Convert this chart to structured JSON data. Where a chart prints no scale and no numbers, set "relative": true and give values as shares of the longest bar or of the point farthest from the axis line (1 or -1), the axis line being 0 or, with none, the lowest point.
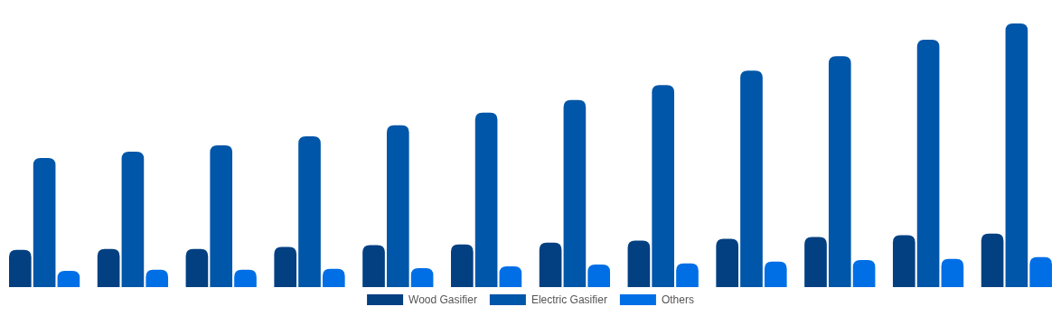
{
  "chart_data": {
    "type": "bar",
    "relative": true,
    "categories": [
      null,
      null,
      null,
      null,
      null,
      null,
      null,
      null,
      null,
      null,
      null,
      null
    ],
    "legend": "bottom",
    "series": [
      {
        "name": "Wood Gasifier",
        "color": "#024082",
        "values": [
          0.141,
          0.145,
          0.145,
          0.152,
          0.159,
          0.162,
          0.169,
          0.176,
          0.183,
          0.19,
          0.197,
          0.203
        ]
      },
      {
        "name": "Electric Gasifier",
        "color": "#0056a8",
        "values": [
          0.49,
          0.514,
          0.538,
          0.572,
          0.614,
          0.662,
          0.71,
          0.766,
          0.821,
          0.876,
          0.938,
          1
        ]
      },
      {
        "name": "Others",
        "color": "#006fe6",
        "values": [
          0.062,
          0.066,
          0.066,
          0.069,
          0.072,
          0.079,
          0.086,
          0.09,
          0.097,
          0.103,
          0.107,
          0.114
        ]
      }
    ]
  }
}
